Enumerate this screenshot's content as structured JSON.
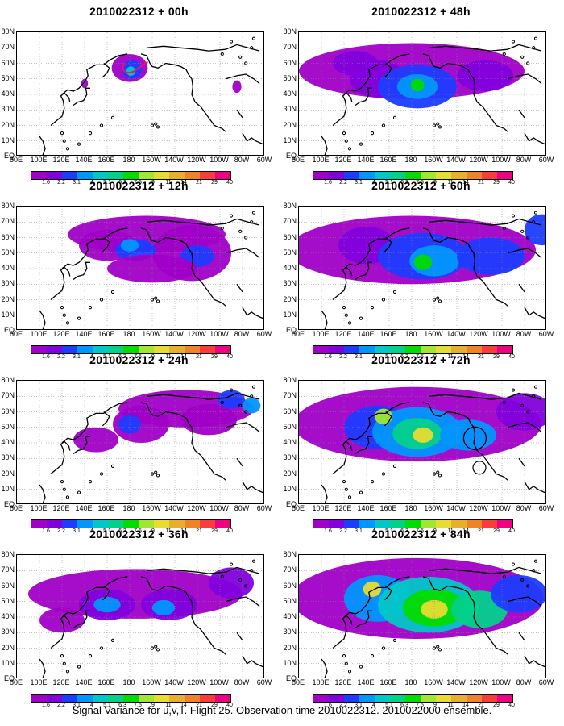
{
  "panels": [
    {
      "title": "2010022312 + 00h",
      "col": 0,
      "row": 0,
      "intensity": 0
    },
    {
      "title": "2010022312 + 48h",
      "col": 1,
      "row": 0,
      "intensity": 4
    },
    {
      "title": "2010022312 + 12h",
      "col": 0,
      "row": 1,
      "intensity": 1
    },
    {
      "title": "2010022312 + 60h",
      "col": 1,
      "row": 1,
      "intensity": 5
    },
    {
      "title": "2010022312 + 24h",
      "col": 0,
      "row": 2,
      "intensity": 2
    },
    {
      "title": "2010022312 + 72h",
      "col": 1,
      "row": 2,
      "intensity": 6
    },
    {
      "title": "2010022312 + 36h",
      "col": 0,
      "row": 3,
      "intensity": 3
    },
    {
      "title": "2010022312 + 84h",
      "col": 1,
      "row": 3,
      "intensity": 7
    }
  ],
  "lat_labels": [
    "80N",
    "70N",
    "60N",
    "50N",
    "40N",
    "30N",
    "20N",
    "10N",
    "EQ"
  ],
  "lon_labels": [
    "80E",
    "100E",
    "120E",
    "140E",
    "160E",
    "180",
    "160W",
    "140W",
    "120W",
    "100W",
    "80W",
    "60W"
  ],
  "colorbar": {
    "labels": [
      "1.6",
      "2.2",
      "3.1",
      "4",
      "5.1",
      "6.3",
      "7.5",
      "9",
      "11",
      "14",
      "21",
      "29",
      "40"
    ],
    "colors": [
      "#a000c8",
      "#8200dc",
      "#1e3cff",
      "#0096ff",
      "#00c8c8",
      "#00d28c",
      "#00dc00",
      "#a0e632",
      "#e6dc32",
      "#e6af2d",
      "#f08228",
      "#fa3c3c",
      "#f00082"
    ]
  },
  "caption": "Signal Variance for u,v,T. Flight 25. Observation time 2010022312. 2010022000 ensemble."
}
